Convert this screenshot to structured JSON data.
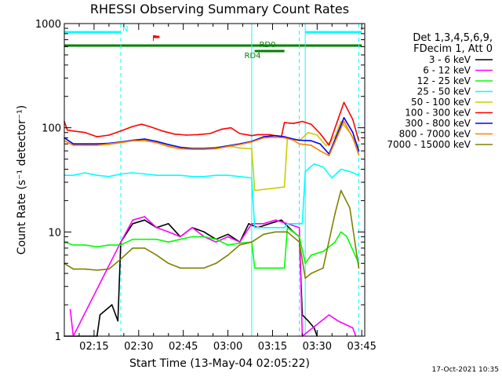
{
  "chart_data": {
    "type": "line",
    "title": "RHESSI Observing Summary Count Rates",
    "xlabel": "Start Time (13-May-04 02:05:22)",
    "ylabel": "Count Rate (s⁻¹ detector⁻¹)",
    "footer": "17-Oct-2021 10:35",
    "y_scale": "log",
    "ylim": [
      1,
      1000
    ],
    "xlim_minutes": [
      "02:05",
      "03:46"
    ],
    "x_ticks": [
      "02:15",
      "02:30",
      "02:45",
      "03:00",
      "03:15",
      "03:30",
      "03:45"
    ],
    "y_ticks": [
      "1",
      "10",
      "100",
      "1000"
    ],
    "legend_header": [
      "Det 1,3,4,5,6,9,",
      "FDecim 1, Att 0"
    ],
    "legend_position": "right",
    "flags": [
      {
        "label": "N",
        "color": "#00ffff",
        "segments": [
          [
            "02:05",
            "02:24"
          ],
          [
            "03:26",
            "03:45"
          ]
        ]
      },
      {
        "label": "F",
        "color": "#ff0000",
        "segments": [
          [
            "02:35",
            "02:37"
          ]
        ]
      },
      {
        "label": "RD0",
        "color": "#008000",
        "segments": [
          [
            "02:05",
            "03:20"
          ],
          [
            "03:20",
            "03:45"
          ]
        ]
      },
      {
        "label": "RD4",
        "color": "#008000",
        "segments": [
          [
            "03:09",
            "03:19"
          ]
        ]
      }
    ],
    "vlines": [
      {
        "time": "02:24",
        "color": "#00ffff",
        "style": "dashed"
      },
      {
        "time": "03:08",
        "color": "#00ffff",
        "style": "solid"
      },
      {
        "time": "03:24",
        "color": "#00ffff",
        "style": "dashed"
      },
      {
        "time": "03:26",
        "color": "#00ffff",
        "style": "solid"
      },
      {
        "time": "03:44",
        "color": "#00ffff",
        "style": "dashed"
      }
    ],
    "series": [
      {
        "name": "3 - 6 keV",
        "color": "#000000",
        "points": [
          [
            "02:05",
            1
          ],
          [
            "02:16",
            1
          ],
          [
            "02:17",
            1.6
          ],
          [
            "02:21",
            2
          ],
          [
            "02:23",
            1.4
          ],
          [
            "02:24",
            8
          ],
          [
            "02:28",
            12
          ],
          [
            "02:32",
            13
          ],
          [
            "02:36",
            11
          ],
          [
            "02:40",
            12
          ],
          [
            "02:44",
            9
          ],
          [
            "02:48",
            11
          ],
          [
            "02:52",
            10
          ],
          [
            "02:56",
            8.5
          ],
          [
            "03:00",
            9.5
          ],
          [
            "03:04",
            8
          ],
          [
            "03:07",
            12
          ],
          [
            "03:10",
            11
          ],
          [
            "03:14",
            12
          ],
          [
            "03:18",
            13
          ],
          [
            "03:22",
            10
          ],
          [
            "03:24",
            9
          ],
          [
            "03:25",
            1.6
          ],
          [
            "03:27",
            1.4
          ],
          [
            "03:29",
            1.2
          ],
          [
            "03:30",
            1
          ]
        ]
      },
      {
        "name": "6 - 12 keV",
        "color": "#ff00ff",
        "points": [
          [
            "02:07",
            1.8
          ],
          [
            "02:08",
            1
          ],
          [
            "02:24",
            8
          ],
          [
            "02:28",
            13
          ],
          [
            "02:32",
            14
          ],
          [
            "02:36",
            11
          ],
          [
            "02:40",
            10
          ],
          [
            "02:44",
            9
          ],
          [
            "02:48",
            11
          ],
          [
            "02:52",
            9
          ],
          [
            "02:56",
            8
          ],
          [
            "03:00",
            9
          ],
          [
            "03:04",
            8
          ],
          [
            "03:08",
            12
          ],
          [
            "03:12",
            12
          ],
          [
            "03:16",
            13
          ],
          [
            "03:20",
            12
          ],
          [
            "03:24",
            11
          ],
          [
            "03:25",
            1
          ],
          [
            "03:34",
            1.6
          ],
          [
            "03:37",
            1.4
          ],
          [
            "03:42",
            1.2
          ],
          [
            "03:43",
            1
          ]
        ]
      },
      {
        "name": "12 - 25 keV",
        "color": "#00ff00",
        "points": [
          [
            "02:05",
            8
          ],
          [
            "02:08",
            7.5
          ],
          [
            "02:12",
            7.5
          ],
          [
            "02:16",
            7.2
          ],
          [
            "02:20",
            7.5
          ],
          [
            "02:24",
            7.5
          ],
          [
            "02:28",
            8.5
          ],
          [
            "02:32",
            8.5
          ],
          [
            "02:36",
            8.5
          ],
          [
            "02:40",
            8
          ],
          [
            "02:44",
            8.5
          ],
          [
            "02:48",
            9
          ],
          [
            "02:52",
            9
          ],
          [
            "02:56",
            8.5
          ],
          [
            "03:00",
            7.5
          ],
          [
            "03:04",
            7.8
          ],
          [
            "03:08",
            8
          ],
          [
            "03:09",
            4.5
          ],
          [
            "03:14",
            4.5
          ],
          [
            "03:19",
            4.5
          ],
          [
            "03:20",
            11
          ],
          [
            "03:24",
            9
          ],
          [
            "03:26",
            5
          ],
          [
            "03:28",
            6
          ],
          [
            "03:32",
            6.5
          ],
          [
            "03:36",
            8
          ],
          [
            "03:38",
            10
          ],
          [
            "03:40",
            9
          ],
          [
            "03:44",
            5
          ]
        ]
      },
      {
        "name": "25 - 50 keV",
        "color": "#00ffff",
        "points": [
          [
            "02:05",
            35
          ],
          [
            "02:08",
            35
          ],
          [
            "02:12",
            37
          ],
          [
            "02:16",
            35
          ],
          [
            "02:20",
            34
          ],
          [
            "02:24",
            36
          ],
          [
            "02:28",
            37
          ],
          [
            "02:32",
            36
          ],
          [
            "02:36",
            35
          ],
          [
            "02:40",
            35
          ],
          [
            "02:44",
            35
          ],
          [
            "02:48",
            34
          ],
          [
            "02:52",
            34
          ],
          [
            "02:56",
            35
          ],
          [
            "03:00",
            35
          ],
          [
            "03:04",
            34
          ],
          [
            "03:08",
            33
          ],
          [
            "03:09",
            11
          ],
          [
            "03:14",
            11
          ],
          [
            "03:19",
            11
          ],
          [
            "03:20",
            12
          ],
          [
            "03:25",
            12
          ],
          [
            "03:26",
            38
          ],
          [
            "03:29",
            45
          ],
          [
            "03:32",
            42
          ],
          [
            "03:35",
            33
          ],
          [
            "03:38",
            40
          ],
          [
            "03:41",
            38
          ],
          [
            "03:44",
            35
          ]
        ]
      },
      {
        "name": "50 - 100 keV",
        "color": "#cccc00",
        "points": [
          [
            "02:05",
            80
          ],
          [
            "02:08",
            70
          ],
          [
            "02:12",
            68
          ],
          [
            "02:16",
            68
          ],
          [
            "02:20",
            69
          ],
          [
            "02:24",
            72
          ],
          [
            "02:28",
            75
          ],
          [
            "02:32",
            76
          ],
          [
            "02:36",
            73
          ],
          [
            "02:40",
            68
          ],
          [
            "02:44",
            65
          ],
          [
            "02:48",
            64
          ],
          [
            "02:52",
            64
          ],
          [
            "02:56",
            65
          ],
          [
            "03:00",
            67
          ],
          [
            "03:04",
            64
          ],
          [
            "03:08",
            63
          ],
          [
            "03:09",
            25
          ],
          [
            "03:14",
            26
          ],
          [
            "03:19",
            27
          ],
          [
            "03:20",
            80
          ],
          [
            "03:24",
            75
          ],
          [
            "03:27",
            90
          ],
          [
            "03:30",
            85
          ],
          [
            "03:33",
            67
          ],
          [
            "03:36",
            82
          ],
          [
            "03:38",
            115
          ],
          [
            "03:41",
            90
          ],
          [
            "03:44",
            65
          ]
        ]
      },
      {
        "name": "100 - 300 keV",
        "color": "#ff0000",
        "points": [
          [
            "02:05",
            115
          ],
          [
            "02:06",
            95
          ],
          [
            "02:08",
            93
          ],
          [
            "02:12",
            90
          ],
          [
            "02:16",
            82
          ],
          [
            "02:20",
            85
          ],
          [
            "02:24",
            93
          ],
          [
            "02:28",
            103
          ],
          [
            "02:31",
            108
          ],
          [
            "02:34",
            102
          ],
          [
            "02:38",
            93
          ],
          [
            "02:42",
            87
          ],
          [
            "02:46",
            85
          ],
          [
            "02:50",
            86
          ],
          [
            "02:54",
            88
          ],
          [
            "02:58",
            97
          ],
          [
            "03:01",
            100
          ],
          [
            "03:04",
            88
          ],
          [
            "03:08",
            84
          ],
          [
            "03:10",
            86
          ],
          [
            "03:14",
            86
          ],
          [
            "03:18",
            82
          ],
          [
            "03:19",
            112
          ],
          [
            "03:22",
            110
          ],
          [
            "03:25",
            115
          ],
          [
            "03:28",
            108
          ],
          [
            "03:31",
            88
          ],
          [
            "03:34",
            68
          ],
          [
            "03:37",
            120
          ],
          [
            "03:39",
            175
          ],
          [
            "03:42",
            120
          ],
          [
            "03:44",
            75
          ]
        ]
      },
      {
        "name": "300 - 800 keV",
        "color": "#0000ff",
        "points": [
          [
            "02:05",
            80
          ],
          [
            "02:08",
            70
          ],
          [
            "02:12",
            70
          ],
          [
            "02:16",
            70
          ],
          [
            "02:20",
            71
          ],
          [
            "02:24",
            73
          ],
          [
            "02:28",
            76
          ],
          [
            "02:32",
            78
          ],
          [
            "02:36",
            74
          ],
          [
            "02:40",
            69
          ],
          [
            "02:44",
            65
          ],
          [
            "02:48",
            63
          ],
          [
            "02:52",
            63
          ],
          [
            "02:56",
            64
          ],
          [
            "03:00",
            67
          ],
          [
            "03:04",
            70
          ],
          [
            "03:08",
            74
          ],
          [
            "03:12",
            82
          ],
          [
            "03:16",
            84
          ],
          [
            "03:19",
            82
          ],
          [
            "03:22",
            78
          ],
          [
            "03:24",
            76
          ],
          [
            "03:28",
            75
          ],
          [
            "03:31",
            70
          ],
          [
            "03:34",
            56
          ],
          [
            "03:37",
            90
          ],
          [
            "03:39",
            125
          ],
          [
            "03:42",
            90
          ],
          [
            "03:44",
            60
          ]
        ]
      },
      {
        "name": "800 - 7000 keV",
        "color": "#ff8000",
        "points": [
          [
            "02:05",
            75
          ],
          [
            "02:08",
            68
          ],
          [
            "02:12",
            68
          ],
          [
            "02:16",
            68
          ],
          [
            "02:20",
            70
          ],
          [
            "02:24",
            72
          ],
          [
            "02:28",
            75
          ],
          [
            "02:32",
            75
          ],
          [
            "02:36",
            72
          ],
          [
            "02:40",
            66
          ],
          [
            "02:44",
            63
          ],
          [
            "02:48",
            62
          ],
          [
            "02:52",
            62
          ],
          [
            "02:56",
            63
          ],
          [
            "03:00",
            66
          ],
          [
            "03:04",
            69
          ],
          [
            "03:08",
            73
          ],
          [
            "03:12",
            80
          ],
          [
            "03:16",
            81
          ],
          [
            "03:19",
            80
          ],
          [
            "03:22",
            76
          ],
          [
            "03:24",
            70
          ],
          [
            "03:28",
            68
          ],
          [
            "03:31",
            60
          ],
          [
            "03:34",
            54
          ],
          [
            "03:37",
            85
          ],
          [
            "03:39",
            115
          ],
          [
            "03:42",
            80
          ],
          [
            "03:44",
            55
          ]
        ]
      },
      {
        "name": "7000 - 15000 keV",
        "color": "#808000",
        "points": [
          [
            "02:05",
            5
          ],
          [
            "02:08",
            4.4
          ],
          [
            "02:12",
            4.4
          ],
          [
            "02:16",
            4.3
          ],
          [
            "02:20",
            4.4
          ],
          [
            "02:24",
            5.5
          ],
          [
            "02:28",
            7
          ],
          [
            "02:32",
            7
          ],
          [
            "02:36",
            6
          ],
          [
            "02:40",
            5
          ],
          [
            "02:44",
            4.5
          ],
          [
            "02:48",
            4.5
          ],
          [
            "02:52",
            4.5
          ],
          [
            "02:56",
            5
          ],
          [
            "03:00",
            6
          ],
          [
            "03:04",
            7.5
          ],
          [
            "03:08",
            8
          ],
          [
            "03:12",
            9.5
          ],
          [
            "03:16",
            10
          ],
          [
            "03:20",
            10
          ],
          [
            "03:24",
            8
          ],
          [
            "03:26",
            3.6
          ],
          [
            "03:28",
            4
          ],
          [
            "03:32",
            4.5
          ],
          [
            "03:36",
            15
          ],
          [
            "03:38",
            25
          ],
          [
            "03:41",
            17
          ],
          [
            "03:44",
            4.5
          ]
        ]
      }
    ]
  }
}
